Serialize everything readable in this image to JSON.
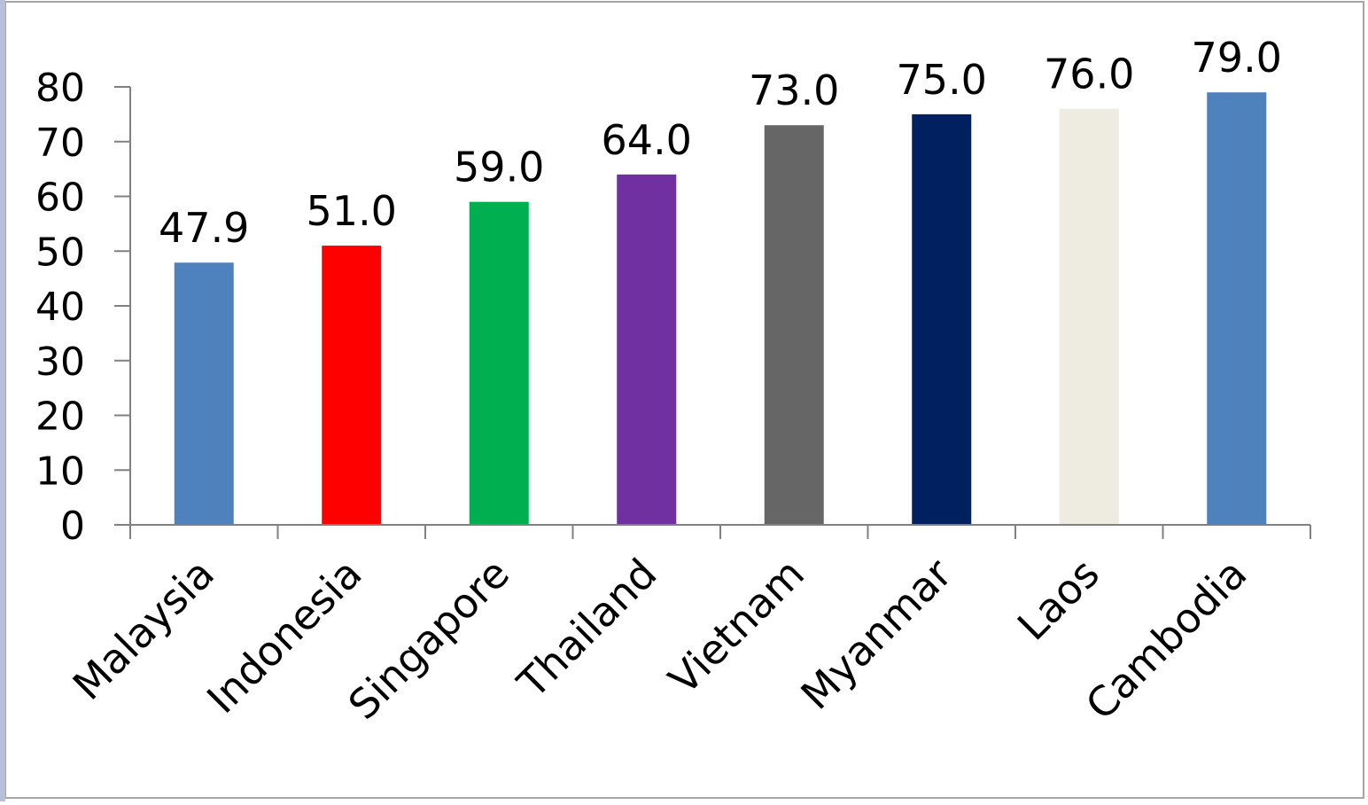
{
  "chart_data": {
    "type": "bar",
    "title": "",
    "xlabel": "",
    "ylabel": "",
    "categories": [
      "Malaysia",
      "Indonesia",
      "Singapore",
      "Thailand",
      "Vietnam",
      "Myanmar",
      "Laos",
      "Cambodia"
    ],
    "values": [
      47.9,
      51.0,
      59.0,
      64.0,
      73.0,
      75.0,
      76.0,
      79.0
    ],
    "value_labels": [
      "47.9",
      "51.0",
      "59.0",
      "64.0",
      "73.0",
      "75.0",
      "76.0",
      "79.0"
    ],
    "bar_colors": [
      "#4f81bd",
      "#ff0000",
      "#00b050",
      "#7030a0",
      "#666666",
      "#002060",
      "#eeece1",
      "#4f81bd"
    ],
    "ylim": [
      0,
      80
    ],
    "yticks": [
      0,
      10,
      20,
      30,
      40,
      50,
      60,
      70,
      80
    ],
    "ytick_labels": [
      "0",
      "10",
      "20",
      "30",
      "40",
      "50",
      "60",
      "70",
      "80"
    ],
    "grid": false,
    "legend": "none",
    "frame_color": "#a6a6a6",
    "axis_color": "#808080",
    "left_accent_color": "#b7bfd9"
  }
}
